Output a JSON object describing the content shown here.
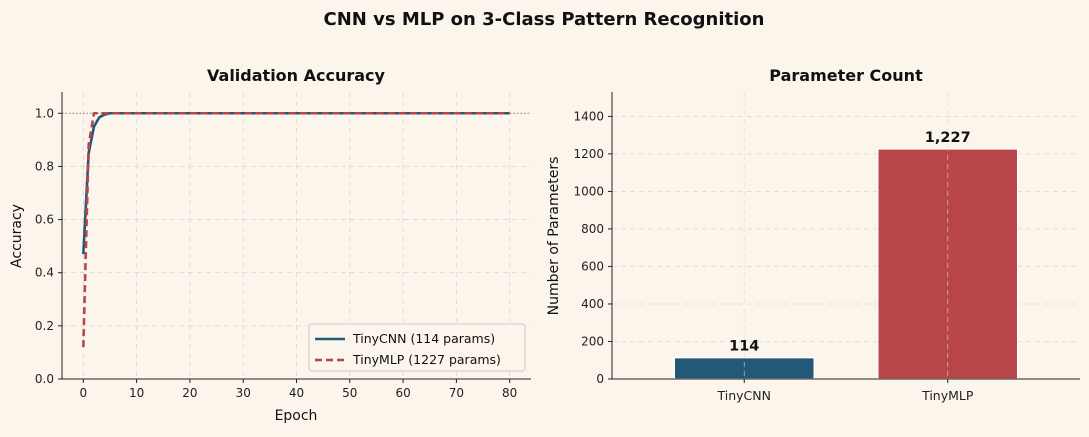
{
  "suptitle": "CNN vs MLP on 3-Class Pattern Recognition",
  "colors": {
    "background": "#fcf5ec",
    "cnn": "#235878",
    "mlp": "#b84648",
    "grid": "#d9d9d9"
  },
  "chart_data": [
    {
      "type": "line",
      "title": "Validation Accuracy",
      "xlabel": "Epoch",
      "ylabel": "Accuracy",
      "xlim": [
        -4,
        84
      ],
      "ylim": [
        0,
        1.08
      ],
      "xticks": [
        0,
        10,
        20,
        30,
        40,
        50,
        60,
        70,
        80
      ],
      "yticks": [
        0.0,
        0.2,
        0.4,
        0.6,
        0.8,
        1.0
      ],
      "ytick_labels": [
        "0.0",
        "0.2",
        "0.4",
        "0.6",
        "0.8",
        "1.0"
      ],
      "reference_line": 1.0,
      "grid": true,
      "legend_position": "lower-right",
      "series": [
        {
          "name": "TinyCNN (114 params)",
          "style": "solid",
          "color": "#235878",
          "x": [
            0,
            1,
            2,
            3,
            4,
            5,
            10,
            20,
            40,
            60,
            80
          ],
          "y": [
            0.47,
            0.85,
            0.95,
            0.985,
            0.995,
            1.0,
            1.0,
            1.0,
            1.0,
            1.0,
            1.0
          ]
        },
        {
          "name": "TinyMLP (1227 params)",
          "style": "dashed",
          "color": "#b84648",
          "x": [
            0,
            1,
            2,
            3,
            4,
            5,
            10,
            20,
            40,
            60,
            80
          ],
          "y": [
            0.12,
            0.88,
            1.0,
            1.0,
            1.0,
            1.0,
            1.0,
            1.0,
            1.0,
            1.0,
            1.0
          ]
        }
      ]
    },
    {
      "type": "bar",
      "title": "Parameter Count",
      "xlabel": "",
      "ylabel": "Number of Parameters",
      "categories": [
        "TinyCNN",
        "TinyMLP"
      ],
      "values": [
        114,
        1227
      ],
      "value_labels": [
        "114",
        "1,227"
      ],
      "colors": [
        "#235878",
        "#b84648"
      ],
      "ylim": [
        0,
        1530
      ],
      "yticks": [
        0,
        200,
        400,
        600,
        800,
        1000,
        1200,
        1400
      ],
      "grid": true
    }
  ]
}
